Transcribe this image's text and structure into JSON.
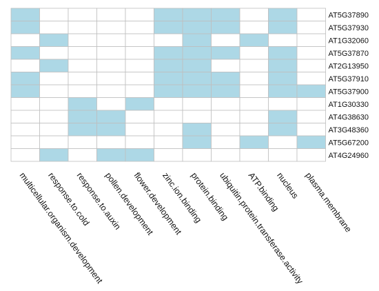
{
  "chart_data": {
    "type": "heatmap",
    "title": "",
    "xlabel": "",
    "ylabel": "",
    "columns": [
      "multicellular.organism.development",
      "response.to.cold",
      "response.to.auxin",
      "pollen.development",
      "flower.development",
      "zinc.ion.binding",
      "protein.binding",
      "ubiquitin.protein.transferase.activity",
      "ATP.binding",
      "nucleus",
      "plasma.membrane"
    ],
    "rows": [
      "AT5G37890",
      "AT5G37930",
      "AT1G32060",
      "AT5G37870",
      "AT2G13950",
      "AT5G37910",
      "AT5G37900",
      "AT1G30330",
      "AT4G38630",
      "AT3G48360",
      "AT5G67200",
      "AT4G24960"
    ],
    "matrix": [
      [
        1,
        0,
        0,
        0,
        0,
        1,
        1,
        1,
        0,
        1,
        0
      ],
      [
        1,
        0,
        0,
        0,
        0,
        1,
        1,
        1,
        0,
        1,
        0
      ],
      [
        0,
        1,
        0,
        0,
        0,
        0,
        1,
        0,
        1,
        0,
        0
      ],
      [
        1,
        0,
        0,
        0,
        0,
        1,
        1,
        1,
        0,
        1,
        0
      ],
      [
        0,
        1,
        0,
        0,
        0,
        1,
        1,
        0,
        0,
        1,
        0
      ],
      [
        1,
        0,
        0,
        0,
        0,
        1,
        1,
        1,
        0,
        1,
        0
      ],
      [
        1,
        0,
        0,
        0,
        0,
        1,
        1,
        1,
        0,
        1,
        1
      ],
      [
        0,
        0,
        1,
        0,
        1,
        0,
        0,
        0,
        0,
        0,
        0
      ],
      [
        0,
        0,
        1,
        1,
        0,
        0,
        0,
        0,
        0,
        1,
        0
      ],
      [
        0,
        0,
        1,
        1,
        0,
        0,
        1,
        0,
        0,
        1,
        0
      ],
      [
        0,
        0,
        0,
        0,
        0,
        0,
        1,
        0,
        1,
        0,
        1
      ],
      [
        0,
        1,
        0,
        1,
        1,
        0,
        0,
        0,
        0,
        0,
        0
      ]
    ],
    "colors": {
      "on": "#add8e6",
      "off": "#ffffff",
      "grid": "#bfbfbf"
    },
    "legend": "none",
    "grid": true
  }
}
